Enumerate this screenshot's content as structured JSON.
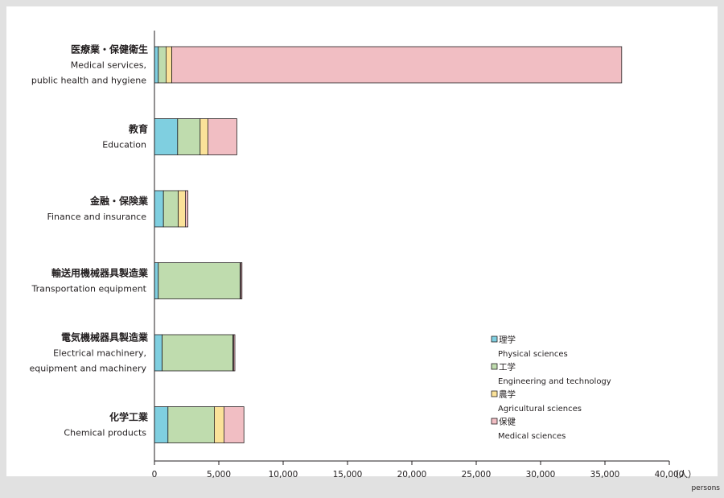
{
  "chart_data": {
    "type": "bar",
    "orientation": "horizontal",
    "stacked": true,
    "categories": [
      {
        "ja": "医療業・保健衛生",
        "en": [
          "Medical services,",
          "public health and hygiene"
        ]
      },
      {
        "ja": "教育",
        "en": [
          "Education"
        ]
      },
      {
        "ja": "金融・保険業",
        "en": [
          "Finance and insurance"
        ]
      },
      {
        "ja": "輸送用機械器具製造業",
        "en": [
          "Transportation equipment"
        ]
      },
      {
        "ja": "電気機械器具製造業",
        "en": [
          "Electrical machinery,",
          "equipment and machinery"
        ]
      },
      {
        "ja": "化学工業",
        "en": [
          "Chemical products"
        ]
      }
    ],
    "series": [
      {
        "name": "理学",
        "name_en": "Physical sciences",
        "color": "#7fcfe0",
        "values": [
          300,
          1800,
          700,
          300,
          600,
          1050
        ]
      },
      {
        "name": "工学",
        "name_en": "Engineering and technology",
        "color": "#bfdcae",
        "values": [
          600,
          1750,
          1150,
          6350,
          5500,
          3600
        ]
      },
      {
        "name": "農学",
        "name_en": "Agricultural sciences",
        "color": "#fbe299",
        "values": [
          450,
          600,
          550,
          50,
          50,
          750
        ]
      },
      {
        "name": "保健",
        "name_en": "Medical sciences",
        "color": "#f1bec3",
        "values": [
          34950,
          2250,
          200,
          100,
          100,
          1550
        ]
      }
    ],
    "xlim": [
      0,
      40000
    ],
    "xticks": [
      "0",
      "5,000",
      "10,000",
      "15,000",
      "20,000",
      "25,000",
      "30,000",
      "35,000",
      "40,000"
    ],
    "xtick_values": [
      0,
      5000,
      10000,
      15000,
      20000,
      25000,
      30000,
      35000,
      40000
    ],
    "unit_ja": "（人）",
    "unit_en": "persons",
    "grid": false,
    "legend_position": "bottom-right"
  }
}
